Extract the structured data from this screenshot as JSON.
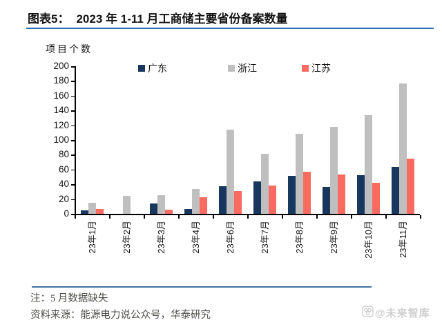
{
  "header": {
    "prefix": "图表5：",
    "title": "2023 年 1-11 月工商储主要省份备案数量"
  },
  "chart_data": {
    "type": "bar",
    "title": "2023 年 1-11 月工商储主要省份备案数量",
    "ylabel": "项目个数",
    "xlabel": "",
    "ylim": [
      0,
      200
    ],
    "ytick_step": 20,
    "grid": false,
    "legend_position": "top",
    "categories": [
      "23年1月",
      "23年2月",
      "23年3月",
      "23年4月",
      "23年6月",
      "23年7月",
      "23年8月",
      "23年9月",
      "23年10月",
      "23年11月"
    ],
    "series": [
      {
        "name": "广东",
        "color": "#17375E",
        "values": [
          5,
          0,
          14,
          7,
          37,
          44,
          51,
          36,
          52,
          64
        ]
      },
      {
        "name": "浙江",
        "color": "#BFBFBF",
        "values": [
          15,
          24,
          25,
          34,
          114,
          81,
          108,
          118,
          134,
          177
        ]
      },
      {
        "name": "江苏",
        "color": "#F96B61",
        "values": [
          7,
          0,
          6,
          22,
          31,
          38,
          57,
          53,
          42,
          75
        ]
      }
    ]
  },
  "footer": {
    "note": "注：5 月数据缺失",
    "source": "资料来源：能源电力说公众号，华泰研究",
    "watermark": "@未来智库"
  },
  "colors": {
    "title_underline": "#2E74B5",
    "footer_line": "#41719C",
    "axis": "#000000"
  }
}
